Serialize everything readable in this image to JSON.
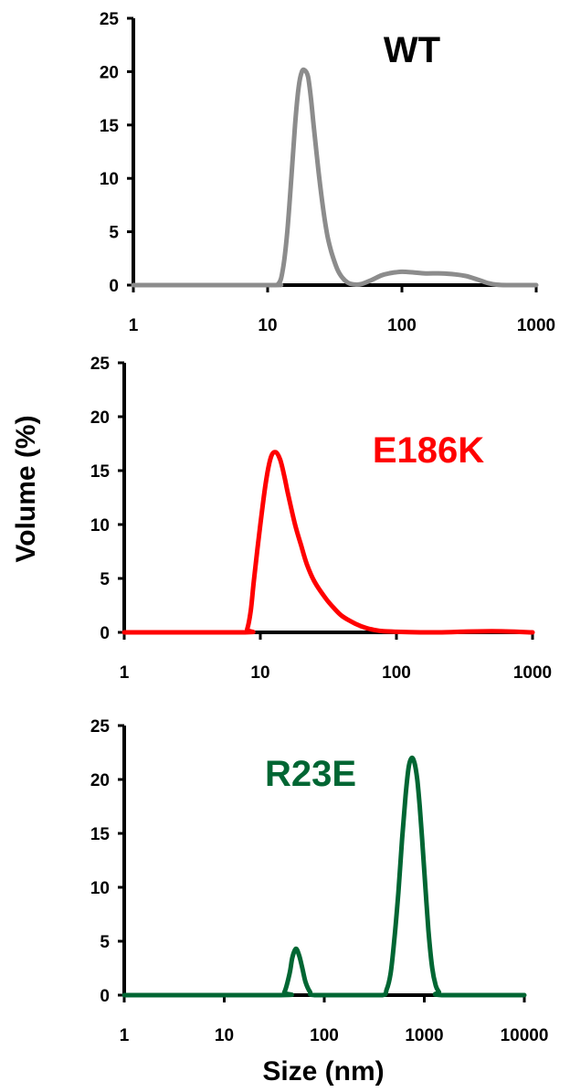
{
  "figure": {
    "ylabel": "Volume (%)",
    "xlabel": "Size (nm)"
  },
  "chart_data": [
    {
      "type": "line",
      "title": "WT",
      "xscale": "log",
      "xlim": [
        1,
        1000
      ],
      "ylim": [
        0,
        25
      ],
      "xticks": [
        "1",
        "10",
        "100",
        "1000"
      ],
      "yticks": [
        "0",
        "5",
        "10",
        "15",
        "20",
        "25"
      ],
      "grid": false,
      "series": [
        {
          "color": "#8c8c8c",
          "x": [
            1,
            10,
            12,
            13,
            14,
            15,
            16,
            17,
            18,
            19,
            20,
            21,
            22,
            24,
            26,
            28,
            30,
            33,
            36,
            40,
            45,
            50,
            60,
            70,
            80,
            90,
            100,
            120,
            150,
            200,
            250,
            300,
            350,
            400,
            450,
            500,
            600,
            1000
          ],
          "y": [
            0,
            0,
            0.1,
            1.5,
            5,
            10,
            15,
            18.5,
            20,
            20.1,
            19.5,
            17.5,
            15,
            10.5,
            7,
            4.5,
            3,
            1.5,
            0.7,
            0.2,
            0.05,
            0.1,
            0.5,
            0.9,
            1.1,
            1.2,
            1.25,
            1.2,
            1.1,
            1.1,
            1.0,
            0.85,
            0.6,
            0.35,
            0.15,
            0.05,
            0,
            0
          ]
        }
      ]
    },
    {
      "type": "line",
      "title": "E186K",
      "xscale": "log",
      "xlim": [
        1,
        1000
      ],
      "ylim": [
        0,
        25
      ],
      "xticks": [
        "1",
        "10",
        "100",
        "1000"
      ],
      "yticks": [
        "0",
        "5",
        "10",
        "15",
        "20",
        "25"
      ],
      "grid": false,
      "series": [
        {
          "color": "#ff0000",
          "x": [
            1,
            7.5,
            8,
            8.5,
            9,
            10,
            11,
            12,
            13,
            14,
            15,
            16,
            18,
            20,
            22,
            25,
            30,
            35,
            40,
            50,
            60,
            70,
            80,
            100,
            150,
            200,
            500,
            1000
          ],
          "y": [
            0,
            0,
            0.3,
            2,
            5,
            10,
            14,
            16.3,
            16.7,
            16,
            14.5,
            12.8,
            10,
            8,
            6.3,
            4.7,
            3.2,
            2.2,
            1.5,
            0.8,
            0.4,
            0.2,
            0.1,
            0.05,
            0,
            0,
            0.1,
            0
          ]
        }
      ]
    },
    {
      "type": "line",
      "title": "R23E",
      "xscale": "log",
      "xlim": [
        1,
        10000
      ],
      "ylim": [
        0,
        25
      ],
      "xticks": [
        "1",
        "10",
        "100",
        "1000",
        "10000"
      ],
      "yticks": [
        "0",
        "5",
        "10",
        "15",
        "20",
        "25"
      ],
      "grid": false,
      "series": [
        {
          "color": "#006633",
          "x": [
            1,
            35,
            40,
            45,
            48,
            52,
            56,
            60,
            65,
            72,
            80,
            200,
            380,
            420,
            460,
            500,
            550,
            600,
            650,
            700,
            750,
            800,
            850,
            900,
            950,
            1000,
            1100,
            1200,
            1300,
            1400,
            1500,
            10000
          ],
          "y": [
            0,
            0,
            0.3,
            2.0,
            3.5,
            4.3,
            3.7,
            2.6,
            1.2,
            0.3,
            0,
            0,
            0,
            0.5,
            2.0,
            5.0,
            9.5,
            14.5,
            18.5,
            21.2,
            22.0,
            21.5,
            20.0,
            17.5,
            14.5,
            11.5,
            6.0,
            2.5,
            0.9,
            0.3,
            0,
            0
          ]
        }
      ]
    }
  ]
}
